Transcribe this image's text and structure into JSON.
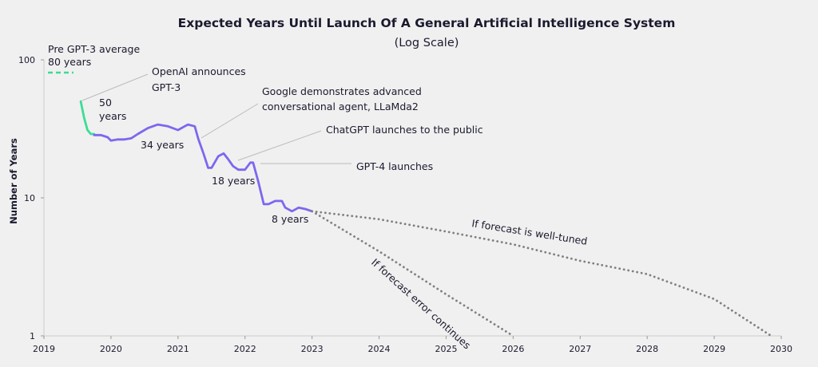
{
  "chart_data": {
    "type": "line",
    "title": "Expected Years Until Launch Of A General Artificial Intelligence System",
    "subtitle": "(Log Scale)",
    "ylabel": "Number of Years",
    "xlabel": "",
    "x_ticks": [
      "2019",
      "2020",
      "2021",
      "2022",
      "2023",
      "2024",
      "2025",
      "2026",
      "2027",
      "2028",
      "2029",
      "2030"
    ],
    "y_ticks": [
      "1",
      "10",
      "100"
    ],
    "y_scale": "log",
    "ylim": [
      1,
      100
    ],
    "xlim": [
      2019.0,
      2030.0
    ],
    "grid": false,
    "colors": {
      "early": "#3ddc97",
      "main": "#7b68ee",
      "forecast": "#808080",
      "leader": "#bbbbbb"
    },
    "series": [
      {
        "name": "",
        "segment": "pre-gpt3",
        "style": "solid",
        "x": [
          2019.55,
          2019.6,
          2019.65,
          2019.7,
          2019.75
        ],
        "y": [
          50,
          38,
          31,
          29,
          29
        ]
      },
      {
        "name": "",
        "segment": "community-forecast",
        "style": "solid",
        "x": [
          2019.75,
          2019.85,
          2019.95,
          2020.0,
          2020.1,
          2020.2,
          2020.3,
          2020.4,
          2020.45,
          2020.55,
          2020.7,
          2020.85,
          2021.0,
          2021.1,
          2021.15,
          2021.25,
          2021.3,
          2021.38,
          2021.45,
          2021.5,
          2021.6,
          2021.68,
          2021.75,
          2021.82,
          2021.9,
          2022.0,
          2022.08,
          2022.12,
          2022.2,
          2022.28,
          2022.35,
          2022.45,
          2022.55,
          2022.6,
          2022.7,
          2022.8,
          2022.9,
          2023.0
        ],
        "y": [
          28.5,
          28.5,
          27.5,
          26,
          26.5,
          26.5,
          27,
          29,
          30,
          32,
          34,
          33,
          31,
          33,
          34,
          33,
          27,
          21,
          16.5,
          16.5,
          20,
          21,
          19,
          17,
          16,
          16,
          18,
          18,
          13,
          9,
          9,
          9.5,
          9.5,
          8.5,
          8,
          8.5,
          8.3,
          8
        ]
      },
      {
        "name": "If forecast is well-tuned",
        "style": "dotted",
        "x": [
          2023.0,
          2024.0,
          2025.0,
          2026.0,
          2027.0,
          2028.0,
          2029.0,
          2029.85
        ],
        "y": [
          8,
          7,
          5.7,
          4.6,
          3.5,
          2.8,
          1.85,
          1.0
        ]
      },
      {
        "name": "If forecast error continues",
        "style": "dotted",
        "x": [
          2023.0,
          2024.0,
          2025.0,
          2026.0
        ],
        "y": [
          8,
          4.1,
          2.0,
          1.0
        ]
      }
    ],
    "annotations": [
      {
        "id": "pre-gpt3",
        "lines": [
          "Pre GPT-3 average",
          "80 years"
        ]
      },
      {
        "id": "openai",
        "lines": [
          "OpenAI announces",
          "GPT-3"
        ]
      },
      {
        "id": "fifty",
        "lines": [
          "50",
          "years"
        ]
      },
      {
        "id": "thirtyfour",
        "lines": [
          "34 years"
        ]
      },
      {
        "id": "google",
        "lines": [
          "Google demonstrates advanced",
          "conversational agent, LLaMda2"
        ]
      },
      {
        "id": "chatgpt",
        "lines": [
          "ChatGPT launches to the public"
        ]
      },
      {
        "id": "gpt4",
        "lines": [
          "GPT-4 launches"
        ]
      },
      {
        "id": "eighteen",
        "lines": [
          "18 years"
        ]
      },
      {
        "id": "eight",
        "lines": [
          "8 years"
        ]
      },
      {
        "id": "welltuned",
        "lines": [
          "If forecast is well-tuned"
        ]
      },
      {
        "id": "errorcont",
        "lines": [
          "If forecast error continues"
        ]
      }
    ]
  }
}
